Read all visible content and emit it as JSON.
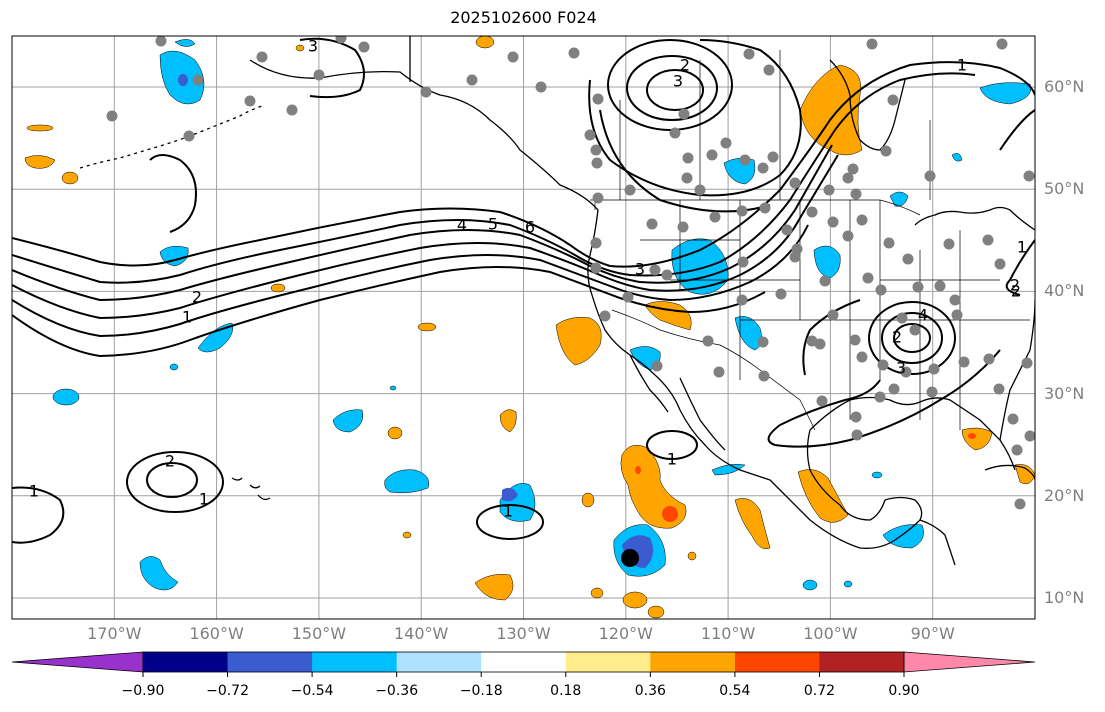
{
  "title": "2025102600 F024",
  "map": {
    "lon_labels": [
      "170°W",
      "160°W",
      "150°W",
      "140°W",
      "130°W",
      "120°W",
      "110°W",
      "100°W",
      "90°W"
    ],
    "lat_labels": [
      "60°N",
      "50°N",
      "40°N",
      "30°N",
      "20°N",
      "10°N"
    ],
    "extent": {
      "lon_min": -180,
      "lon_max": -80,
      "lat_min": 8,
      "lat_max": 65
    },
    "contour_labels": [
      "1",
      "2",
      "1",
      "2",
      "4",
      "5",
      "6",
      "3",
      "3",
      "2",
      "1",
      "2",
      "1",
      "4",
      "3",
      "2",
      "3",
      "1",
      "2",
      "1",
      "1"
    ],
    "colors": {
      "land_outline": "#000000",
      "grid": "#a0a0a0",
      "station": "#808080",
      "marker": "#000000"
    }
  },
  "colorbar": {
    "ticks": [
      "−0.90",
      "−0.72",
      "−0.54",
      "−0.36",
      "−0.18",
      "0.18",
      "0.36",
      "0.54",
      "0.72",
      "0.90"
    ],
    "colors": [
      "#9932cc",
      "#00008b",
      "#3b5bd0",
      "#00bfff",
      "#b0e0ff",
      "#ffffff",
      "#ffec8b",
      "#ffa500",
      "#ff4500",
      "#b22222",
      "#ff88aa"
    ]
  }
}
